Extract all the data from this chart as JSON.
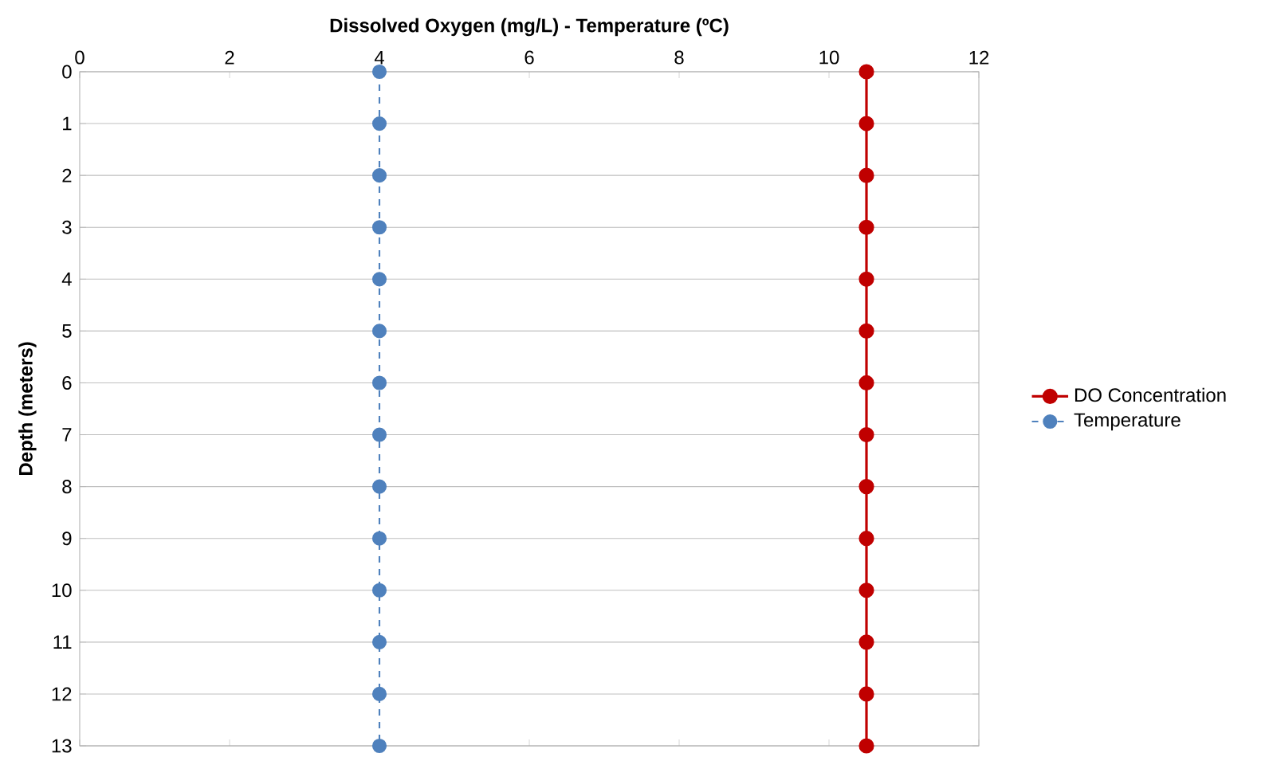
{
  "chart_data": {
    "type": "line",
    "orientation": "horizontal",
    "xlabel": "Dissolved Oxygen (mg/L) - Temperature (ºC)",
    "ylabel": "Depth (meters)",
    "xlim": [
      0,
      12
    ],
    "xticks": [
      0,
      2,
      4,
      6,
      8,
      10,
      12
    ],
    "categories": [
      "0",
      "1",
      "2",
      "3",
      "4",
      "5",
      "6",
      "7",
      "8",
      "9",
      "10",
      "11",
      "12",
      "13"
    ],
    "grid": "y",
    "legend": "right",
    "marker": "circle",
    "series": [
      {
        "name": "DO Concentration",
        "color": "#c00000",
        "line_style": "solid",
        "values": [
          10.5,
          10.5,
          10.5,
          10.5,
          10.5,
          10.5,
          10.5,
          10.5,
          10.5,
          10.5,
          10.5,
          10.5,
          10.5,
          10.5
        ]
      },
      {
        "name": "Temperature",
        "color": "#4f81bd",
        "line_style": "dashed",
        "values": [
          4,
          4,
          4,
          4,
          4,
          4,
          4,
          4,
          4,
          4,
          4,
          4,
          4,
          4
        ]
      }
    ]
  }
}
